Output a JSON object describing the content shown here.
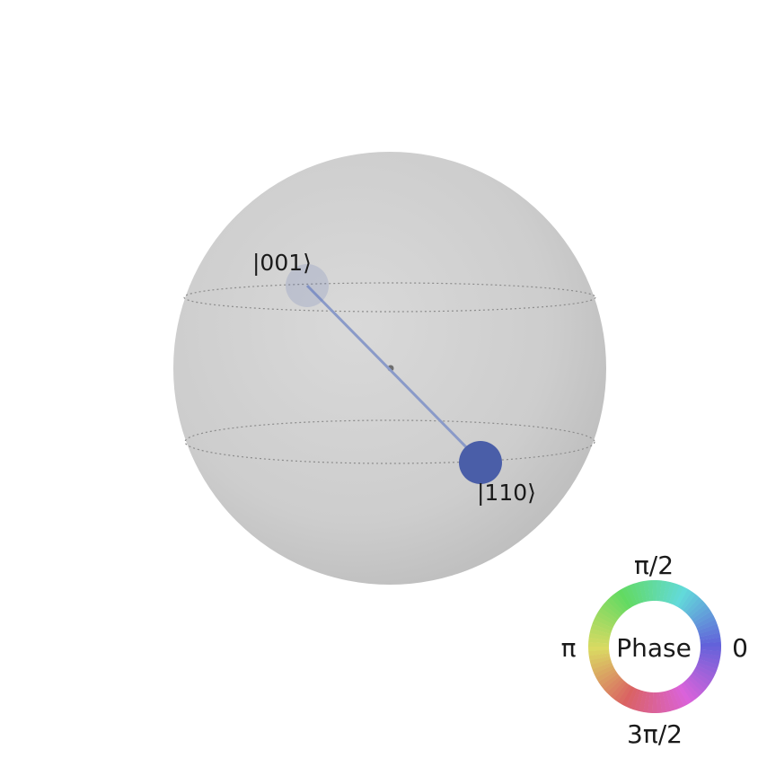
{
  "qsphere": {
    "states": [
      {
        "label": "|001⟩",
        "opacity": 0.18,
        "color": "#5468b0"
      },
      {
        "label": "|110⟩",
        "opacity": 1.0,
        "color": "#4a5ea8"
      }
    ],
    "sphere_color": "#cfcfcf",
    "line_color": "#8a9ac8"
  },
  "phase_legend": {
    "title": "Phase",
    "label_top": "π/2",
    "label_left": "π",
    "label_right": "0",
    "label_bottom": "3π/2"
  }
}
